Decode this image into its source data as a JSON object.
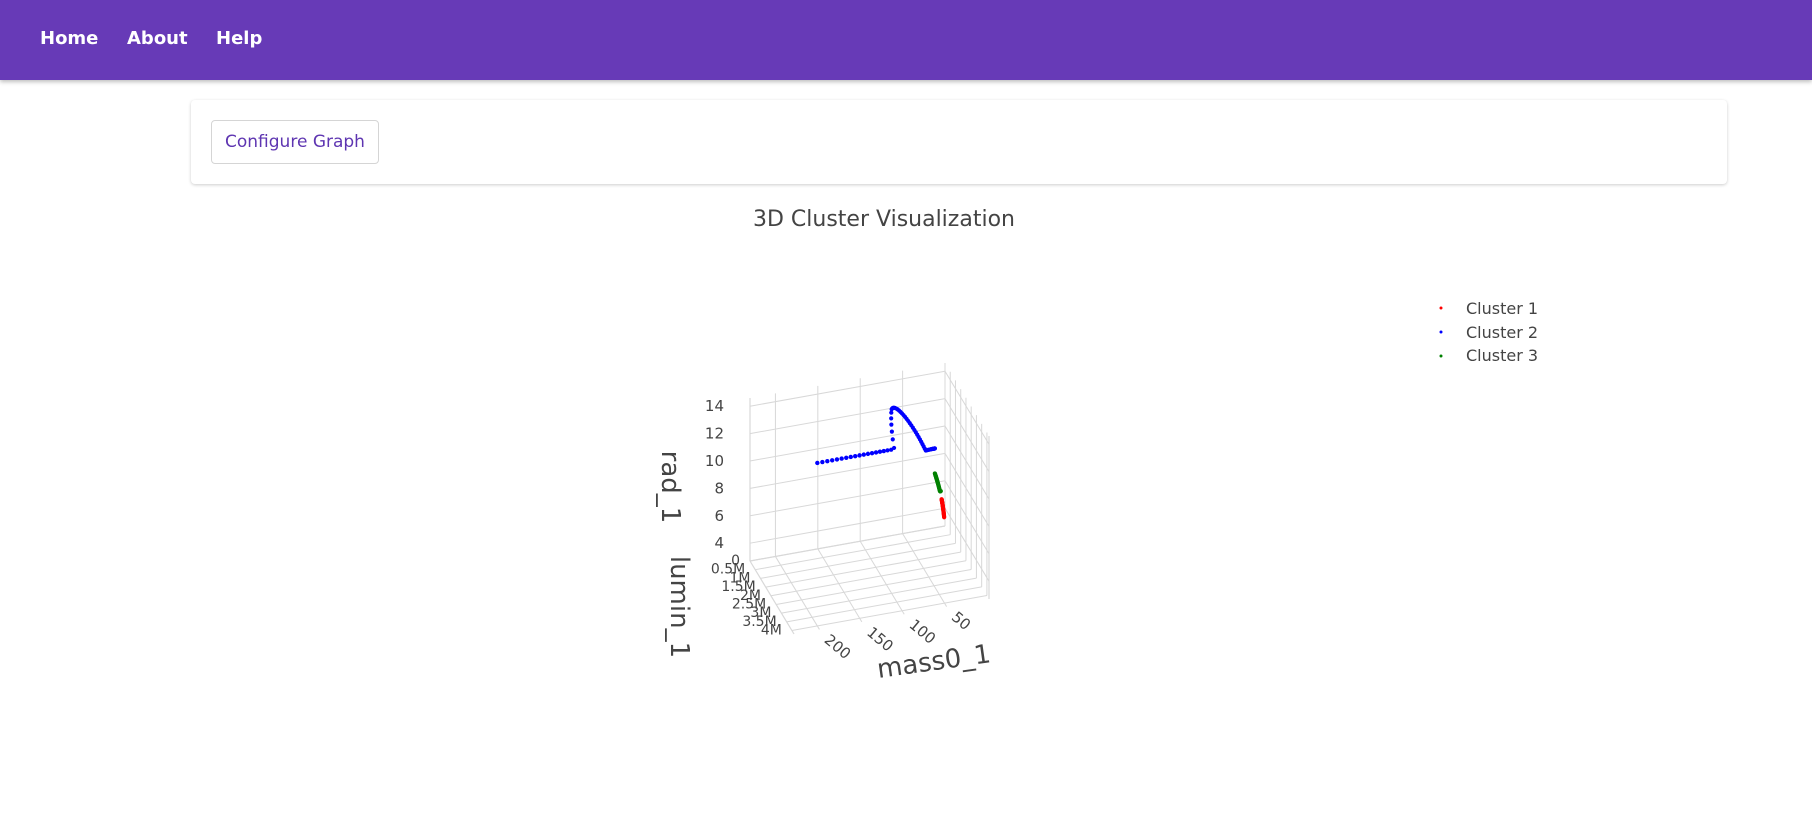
{
  "nav": {
    "items": [
      "Home",
      "About",
      "Help"
    ]
  },
  "toolbar": {
    "configure_label": "Configure Graph"
  },
  "colors": {
    "nav_bg": "#673ab7",
    "accent": "#5e35b1",
    "cluster1": "#ff0000",
    "cluster2": "#0000ff",
    "cluster3": "#008000"
  },
  "chart_data": {
    "type": "scatter",
    "title": "3D Cluster Visualization",
    "axes": {
      "x": {
        "label": "mass0_1",
        "ticks": [
          "200",
          "150",
          "100",
          "50"
        ]
      },
      "y": {
        "label": "lumin_1",
        "ticks": [
          "0",
          "0.5M",
          "1M",
          "1.5M",
          "2M",
          "2.5M",
          "3M",
          "3.5M",
          "4M"
        ]
      },
      "z": {
        "label": "rad_1",
        "ticks": [
          "4",
          "6",
          "8",
          "10",
          "12",
          "14"
        ]
      }
    },
    "legend": {
      "placement": "top-right"
    },
    "series": [
      {
        "name": "Cluster 1",
        "color": "#ff0000",
        "mass_range": [
          1,
          4
        ],
        "rad_range": [
          2.7,
          5.3
        ]
      },
      {
        "name": "Cluster 2",
        "color": "#0000ff",
        "mass_range": [
          12,
          200
        ],
        "rad_range": [
          8.5,
          14.6
        ]
      },
      {
        "name": "Cluster 3",
        "color": "#008000",
        "mass_range": [
          5,
          12
        ],
        "rad_range": [
          5.3,
          8.7
        ]
      }
    ]
  }
}
